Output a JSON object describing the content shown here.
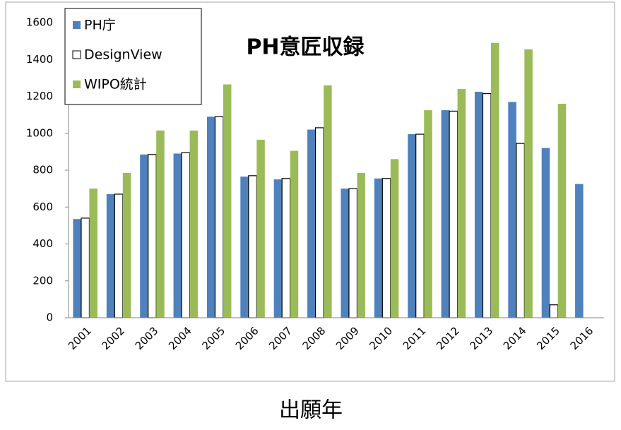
{
  "chart_data": {
    "type": "bar",
    "title": "PH意匠収録",
    "x_label": "出願年",
    "categories": [
      "2001",
      "2002",
      "2003",
      "2004",
      "2005",
      "2006",
      "2007",
      "2008",
      "2009",
      "2010",
      "2011",
      "2012",
      "2013",
      "2014",
      "2015",
      "2016"
    ],
    "series": [
      {
        "name": "PH庁",
        "color": "#4f81bd",
        "values": [
          535,
          670,
          885,
          890,
          1090,
          765,
          750,
          1020,
          700,
          755,
          995,
          1125,
          1225,
          1170,
          920,
          725
        ]
      },
      {
        "name": "DesignView",
        "color": "#ffffff",
        "values": [
          540,
          670,
          885,
          895,
          1090,
          770,
          755,
          1030,
          700,
          755,
          995,
          1120,
          1215,
          945,
          70,
          null
        ]
      },
      {
        "name": "WIPO統計",
        "color": "#9bbb59",
        "values": [
          700,
          785,
          1015,
          1015,
          1265,
          965,
          905,
          1260,
          785,
          860,
          1125,
          1240,
          1490,
          1455,
          1160,
          null
        ]
      }
    ],
    "ylim": [
      0,
      1600
    ],
    "yticks": [
      0,
      200,
      400,
      600,
      800,
      1000,
      1200,
      1400,
      1600
    ],
    "legend": "top-left"
  }
}
